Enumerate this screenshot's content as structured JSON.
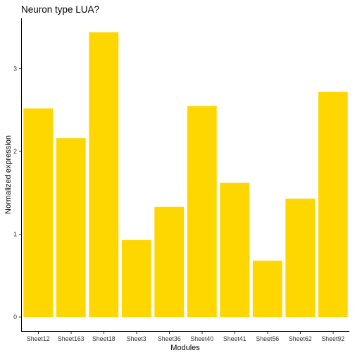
{
  "chart_data": {
    "type": "bar",
    "title": "Neuron type LUA?",
    "xlabel": "Modules",
    "ylabel": "Normalized expression",
    "categories": [
      "Sheet12",
      "Sheet163",
      "Sheet18",
      "Sheet3",
      "Sheet36",
      "Sheet40",
      "Sheet41",
      "Sheet56",
      "Sheet62",
      "Sheet92"
    ],
    "values": [
      2.52,
      2.16,
      3.44,
      0.93,
      1.33,
      2.55,
      1.62,
      0.68,
      1.43,
      2.72
    ],
    "yticks": [
      "0",
      "1",
      "2",
      "3"
    ],
    "ylim": [
      -0.17,
      3.6
    ],
    "grid": false,
    "legend": "none",
    "bar_color": "#FFD700"
  }
}
